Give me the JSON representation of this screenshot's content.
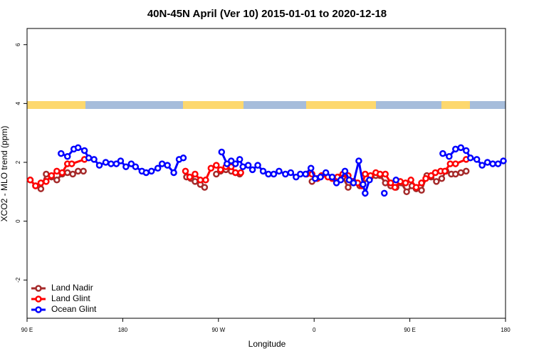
{
  "chart_data": {
    "type": "line",
    "title": "40N-45N April (Ver 10)   2015-01-01 to 2020-12-18",
    "x_label": "Longitude",
    "y_label": "XCO2 - MLO trend (ppm)",
    "xlim": [
      90,
      540
    ],
    "ylim": [
      -3.3,
      6.55
    ],
    "xticks": [
      {
        "value": 90,
        "label": "90 E"
      },
      180,
      {
        "value": 270,
        "label": "90 W"
      },
      {
        "value": 360,
        "label": "0"
      },
      {
        "value": 450,
        "label": "90 E"
      },
      {
        "value": 540,
        "label": "180"
      }
    ],
    "yticks": [
      -2,
      0,
      2,
      4,
      6
    ],
    "legend": "bottom-left",
    "series": [
      {
        "name": "Land Nadir",
        "color": "#a52a2a",
        "x": [
          93,
          98,
          103,
          108,
          113,
          118,
          123,
          128,
          133,
          138,
          143,
          190,
          240,
          244,
          248,
          253,
          257,
          262,
          268,
          272,
          277,
          282,
          286,
          290,
          320,
          358,
          363,
          370,
          383,
          387,
          392,
          397,
          403,
          413,
          418,
          422,
          427,
          432,
          437,
          442,
          447,
          452,
          456,
          461,
          466,
          470,
          475,
          480,
          484,
          489,
          493,
          498,
          503
        ],
        "values": [
          1.4,
          1.2,
          1.1,
          1.6,
          1.5,
          1.4,
          1.6,
          1.65,
          1.6,
          1.7,
          1.7,
          null,
          1.5,
          1.45,
          1.35,
          1.25,
          1.15,
          null,
          1.6,
          1.7,
          1.75,
          1.7,
          1.65,
          1.6,
          null,
          1.35,
          1.45,
          null,
          1.5,
          1.5,
          1.15,
          1.35,
          1.2,
          1.5,
          1.55,
          1.55,
          1.3,
          1.2,
          1.15,
          1.3,
          1.0,
          1.2,
          1.1,
          1.05,
          1.55,
          1.5,
          1.35,
          1.45,
          1.7,
          1.6,
          1.6,
          1.65,
          1.7
        ]
      },
      {
        "name": "Land Glint",
        "color": "#ff0000",
        "x": [
          93,
          98,
          103,
          108,
          113,
          118,
          123,
          128,
          132,
          144,
          190,
          239,
          243,
          248,
          253,
          258,
          263,
          268,
          272,
          277,
          282,
          286,
          291,
          320,
          353,
          358,
          363,
          367,
          373,
          377,
          382,
          387,
          392,
          396,
          401,
          405,
          408,
          413,
          418,
          422,
          427,
          432,
          436,
          441,
          446,
          451,
          456,
          461,
          465,
          470,
          474,
          479,
          483,
          488,
          493,
          503
        ],
        "values": [
          1.4,
          1.2,
          1.3,
          1.35,
          1.55,
          1.7,
          1.65,
          1.95,
          1.95,
          2.1,
          null,
          1.7,
          1.5,
          1.6,
          1.4,
          1.4,
          1.8,
          1.9,
          1.75,
          1.85,
          1.85,
          1.65,
          1.65,
          null,
          1.6,
          1.6,
          1.45,
          1.55,
          1.5,
          1.45,
          1.5,
          1.6,
          1.55,
          1.35,
          1.3,
          1.2,
          1.6,
          1.55,
          1.65,
          1.6,
          1.6,
          1.3,
          1.15,
          1.35,
          1.3,
          1.4,
          1.15,
          1.3,
          1.45,
          1.55,
          1.65,
          1.7,
          1.7,
          1.95,
          1.95,
          2.1
        ]
      },
      {
        "name": "Ocean Glint",
        "color": "#0000ff",
        "x": [
          122,
          128,
          134,
          138,
          144,
          148,
          153,
          158,
          164,
          169,
          174,
          178,
          183,
          188,
          192,
          198,
          202,
          207,
          213,
          217,
          222,
          228,
          233,
          237,
          255,
          273,
          278,
          282,
          286,
          290,
          293,
          298,
          302,
          307,
          312,
          317,
          322,
          327,
          333,
          338,
          343,
          347,
          352,
          357,
          361,
          366,
          371,
          377,
          381,
          385,
          389,
          393,
          397,
          402,
          406,
          408,
          412,
          420,
          426,
          430,
          437,
          460,
          481,
          487,
          493,
          498,
          503,
          507,
          513,
          518,
          523,
          528,
          533,
          538
        ],
        "values": [
          2.3,
          2.2,
          2.45,
          2.5,
          2.4,
          2.15,
          2.1,
          1.9,
          2.0,
          1.95,
          1.95,
          2.05,
          1.85,
          1.95,
          1.85,
          1.7,
          1.65,
          1.7,
          1.8,
          1.95,
          1.9,
          1.65,
          2.1,
          2.15,
          null,
          2.35,
          1.95,
          2.05,
          1.95,
          2.1,
          1.85,
          1.9,
          1.75,
          1.9,
          1.7,
          1.6,
          1.6,
          1.7,
          1.6,
          1.65,
          1.5,
          1.6,
          1.6,
          1.8,
          1.45,
          1.5,
          1.65,
          1.5,
          1.3,
          1.4,
          1.7,
          1.4,
          1.3,
          2.05,
          1.25,
          0.95,
          1.4,
          null,
          0.95,
          null,
          1.4,
          null,
          2.3,
          2.2,
          2.45,
          2.5,
          2.4,
          2.15,
          2.1,
          1.9,
          2.0,
          1.95,
          1.95,
          2.05
        ]
      }
    ]
  }
}
